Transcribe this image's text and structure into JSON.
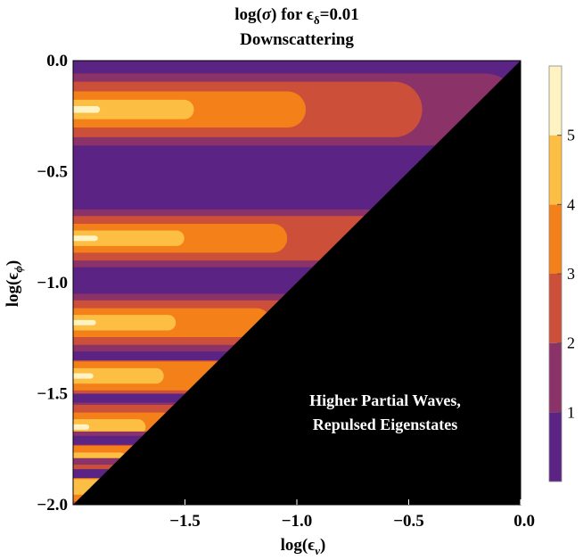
{
  "chart_data": {
    "type": "heatmap",
    "title": "log(σ) for ϵδ=0.01",
    "title_html": {
      "prefix": "log(",
      "sigma": "σ",
      "mid": ") for ",
      "eps": "ϵ",
      "sub": "δ",
      "suffix": "=0.01"
    },
    "subtitle": "Downscattering",
    "xlabel": {
      "prefix": "log(",
      "eps": "ϵ",
      "sub": "ν",
      "suffix": ")"
    },
    "ylabel": {
      "prefix": "log(",
      "eps": "ϵ",
      "sub": "ϕ",
      "suffix": ")"
    },
    "xlim": [
      -2.0,
      0.0
    ],
    "ylim": [
      -2.0,
      0.0
    ],
    "y_inverted": true,
    "x_ticks": [
      {
        "value": -1.5,
        "label": "−1.5"
      },
      {
        "value": -1.0,
        "label": "−1.0"
      },
      {
        "value": -0.5,
        "label": "−0.5"
      },
      {
        "value": 0.0,
        "label": "0.0"
      }
    ],
    "y_ticks": [
      {
        "value": 0.0,
        "label": "0.0"
      },
      {
        "value": -0.5,
        "label": "−0.5"
      },
      {
        "value": -1.0,
        "label": "−1.0"
      },
      {
        "value": -1.5,
        "label": "−1.5"
      },
      {
        "value": -2.0,
        "label": "−2.0"
      }
    ],
    "colorbar": {
      "range": [
        0,
        6
      ],
      "ticks": [
        {
          "value": 1,
          "label": "1"
        },
        {
          "value": 2,
          "label": "2"
        },
        {
          "value": 3,
          "label": "3"
        },
        {
          "value": 4,
          "label": "4"
        },
        {
          "value": 5,
          "label": "5"
        }
      ],
      "bands": [
        {
          "from": 0,
          "to": 1,
          "color": "#5b2383"
        },
        {
          "from": 1,
          "to": 2,
          "color": "#8b3268"
        },
        {
          "from": 2,
          "to": 3,
          "color": "#cc4f3a"
        },
        {
          "from": 3,
          "to": 4,
          "color": "#f4801a"
        },
        {
          "from": 4,
          "to": 5,
          "color": "#fcbf44"
        },
        {
          "from": 5,
          "to": 6,
          "color": "#fff3c4"
        }
      ]
    },
    "excluded_region_color": "#000000",
    "annotation": [
      "Higher Partial Waves,",
      "Repulsed Eigenstates"
    ],
    "resonances": [
      {
        "y": -0.22,
        "max_level": 6,
        "x_extent": 1.0
      },
      {
        "y": -0.8,
        "max_level": 6,
        "x_extent": 0.92
      },
      {
        "y": -1.18,
        "max_level": 6,
        "x_extent": 0.85
      },
      {
        "y": -1.42,
        "max_level": 6,
        "x_extent": 0.75
      },
      {
        "y": -1.65,
        "max_level": 6,
        "x_extent": 0.6
      },
      {
        "y": -1.8,
        "max_level": 5,
        "x_extent": 0.45
      },
      {
        "y": -1.92,
        "max_level": 5,
        "x_extent": 0.35
      }
    ],
    "troughs": [
      -0.56,
      -1.03,
      -1.33,
      -1.52,
      -1.71,
      -1.86
    ]
  }
}
